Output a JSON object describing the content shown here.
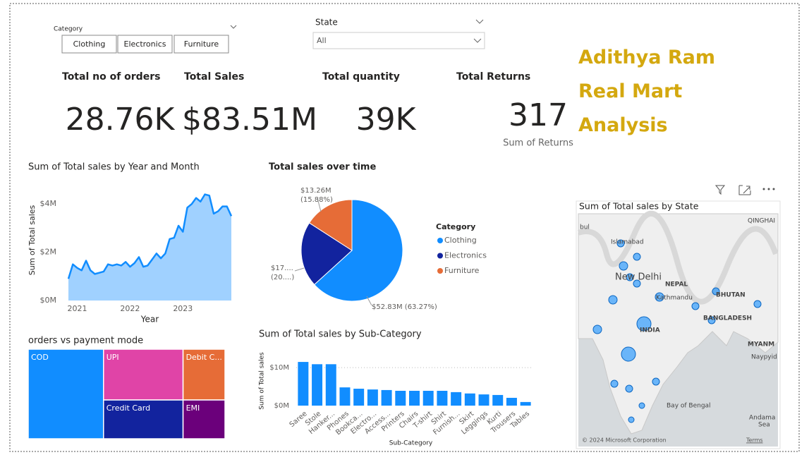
{
  "title": "Adithya Ram Real Mart Analysis",
  "slicers": {
    "category": {
      "label": "Category",
      "options": [
        "Clothing",
        "Electronics",
        "Furniture"
      ]
    },
    "state": {
      "label": "State",
      "value": "All"
    }
  },
  "cards": [
    {
      "label": "Total no of orders",
      "value": "28.76K"
    },
    {
      "label": "Total Sales",
      "value": "$83.51M"
    },
    {
      "label": "Total quantity",
      "value": "39K"
    },
    {
      "label": "Total Returns",
      "value": "317",
      "caption": "Sum of Returns"
    }
  ],
  "map": {
    "title": "Sum of Total sales by State",
    "labels": [
      "bul",
      "QINGHAI",
      "Islamabad",
      "New Delhi",
      "NEPAL",
      "Kathmandu",
      "BHUTAN",
      "BANGLADESH",
      "INDIA",
      "MYANM",
      "Naypyid",
      "Bay of Bengal",
      "Andama",
      "Sea"
    ],
    "attribution": "© 2024 Microsoft Corporation",
    "terms": "Terms"
  },
  "chart_data": [
    {
      "type": "area",
      "title": "Sum of Total sales by Year and Month",
      "xlabel": "Year",
      "ylabel": "Sum of Total sales",
      "color": "#118DFF",
      "x": [
        2020.833,
        2020.917,
        2021,
        2021.083,
        2021.167,
        2021.25,
        2021.333,
        2021.417,
        2021.5,
        2021.583,
        2021.667,
        2021.75,
        2021.833,
        2021.917,
        2022,
        2022.083,
        2022.167,
        2022.25,
        2022.333,
        2022.417,
        2022.5,
        2022.583,
        2022.667,
        2022.75,
        2022.833,
        2022.917,
        2023,
        2023.083,
        2023.167,
        2023.25,
        2023.333,
        2023.417,
        2023.5,
        2023.583,
        2023.667,
        2023.75,
        2023.833,
        2023.917
      ],
      "values": [
        900000,
        1500000,
        1350000,
        1250000,
        1650000,
        1250000,
        1100000,
        1150000,
        1200000,
        1500000,
        1450000,
        1500000,
        1450000,
        1600000,
        1400000,
        1550000,
        1800000,
        1400000,
        1450000,
        1700000,
        1950000,
        1750000,
        1950000,
        2550000,
        2600000,
        3100000,
        2850000,
        3850000,
        4000000,
        4250000,
        4100000,
        4400000,
        4350000,
        3600000,
        3700000,
        3900000,
        3900000,
        3500000
      ],
      "xlim": [
        2020.833,
        2023.917
      ],
      "xticks": [
        2021,
        2022,
        2023
      ],
      "ylim": [
        0,
        5000000
      ],
      "yticks": [
        {
          "value": 0,
          "label": "$0M"
        },
        {
          "value": 2000000,
          "label": "$2M"
        },
        {
          "value": 4000000,
          "label": "$4M"
        }
      ],
      "grid": false
    },
    {
      "type": "pie",
      "title": "Total sales over time",
      "legend_title": "Category",
      "categories": [
        "Clothing",
        "Electronics",
        "Furniture"
      ],
      "values": [
        52.83,
        17.42,
        13.26
      ],
      "value_labels": [
        "$52.83M (63.27%)",
        "$17....\n(20....)",
        "$13.26M\n(15.88%)"
      ],
      "colors": [
        "#118DFF",
        "#12239E",
        "#E66C37"
      ]
    },
    {
      "type": "bar",
      "title": "Sum of Total sales by Sub-Category",
      "xlabel": "Sub-Category",
      "ylabel": "Sum of Total sales",
      "color": "#118DFF",
      "categories": [
        "Saree",
        "Stole",
        "Hanker...",
        "Phones",
        "Bookca...",
        "Electro...",
        "Access...",
        "Printers",
        "Chairs",
        "T-shirt",
        "Shirt",
        "Furnish...",
        "Skirt",
        "Leggings",
        "Kurti",
        "Trousers",
        "Tables"
      ],
      "values": [
        11500000,
        10900000,
        10900000,
        4800000,
        4450000,
        4250000,
        4100000,
        3900000,
        3900000,
        3900000,
        3900000,
        3550000,
        3200000,
        2950000,
        2800000,
        2050000,
        950000
      ],
      "ylim": [
        0,
        13000000
      ],
      "yticks": [
        {
          "value": 0,
          "label": "$0M"
        },
        {
          "value": 10000000,
          "label": "$10M"
        }
      ],
      "grid": true
    },
    {
      "type": "treemap",
      "title": "orders vs payment mode",
      "categories": [
        "COD",
        "UPI",
        "Debit C...",
        "Credit Card",
        "EMI"
      ],
      "values": [
        11005,
        6592,
        3473,
        5036,
        2653
      ],
      "colors": [
        "#118DFF",
        "#E044A7",
        "#E66C37",
        "#12239E",
        "#6B007B"
      ]
    }
  ]
}
